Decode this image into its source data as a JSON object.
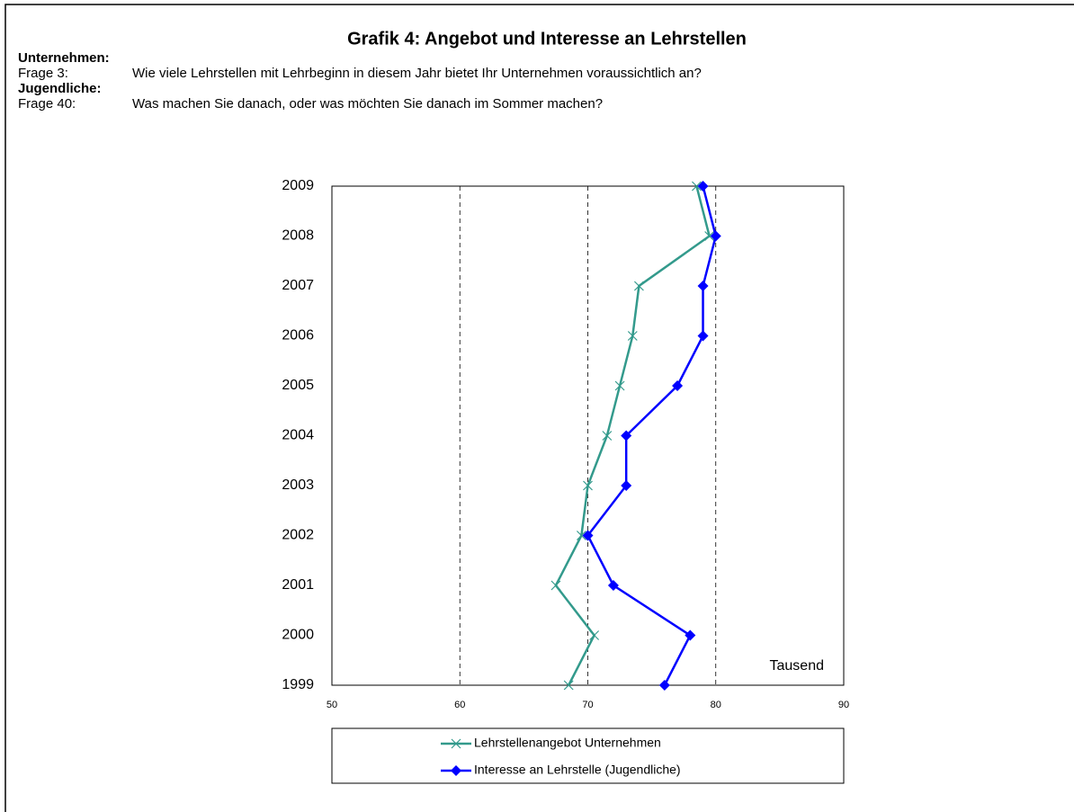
{
  "chart_data": {
    "type": "line",
    "title": "Grafik 4: Angebot und Interesse an Lehrstellen",
    "header": [
      {
        "group": "Unternehmen:",
        "question_label": "Frage 3:",
        "question": "Wie viele Lehrstellen mit Lehrbeginn in diesem Jahr bietet Ihr Unternehmen voraussichtlich an?"
      },
      {
        "group": "Jugendliche:",
        "question_label": "Frage 40:",
        "question": "Was machen Sie danach, oder was möchten Sie danach im Sommer machen?"
      }
    ],
    "annotation": "Tausend",
    "categories": [
      "1999",
      "2000",
      "2001",
      "2002",
      "2003",
      "2004",
      "2005",
      "2006",
      "2007",
      "2008",
      "2009"
    ],
    "series": [
      {
        "name": "Lehrstellenangebot Unternehmen",
        "color": "#339a8c",
        "marker": "x",
        "values": [
          68.5,
          70.5,
          67.5,
          69.5,
          70,
          71.5,
          72.5,
          73.5,
          74,
          79.5,
          78.5
        ]
      },
      {
        "name": "Interesse an Lehrstelle (Jugendliche)",
        "color": "#0000ff",
        "marker": "diamond",
        "values": [
          76,
          78,
          72,
          70,
          73,
          73,
          77,
          79,
          79,
          80,
          79
        ]
      }
    ],
    "xlim": [
      50,
      90
    ],
    "xticks": [
      50,
      60,
      70,
      80,
      90
    ],
    "grid": true
  }
}
